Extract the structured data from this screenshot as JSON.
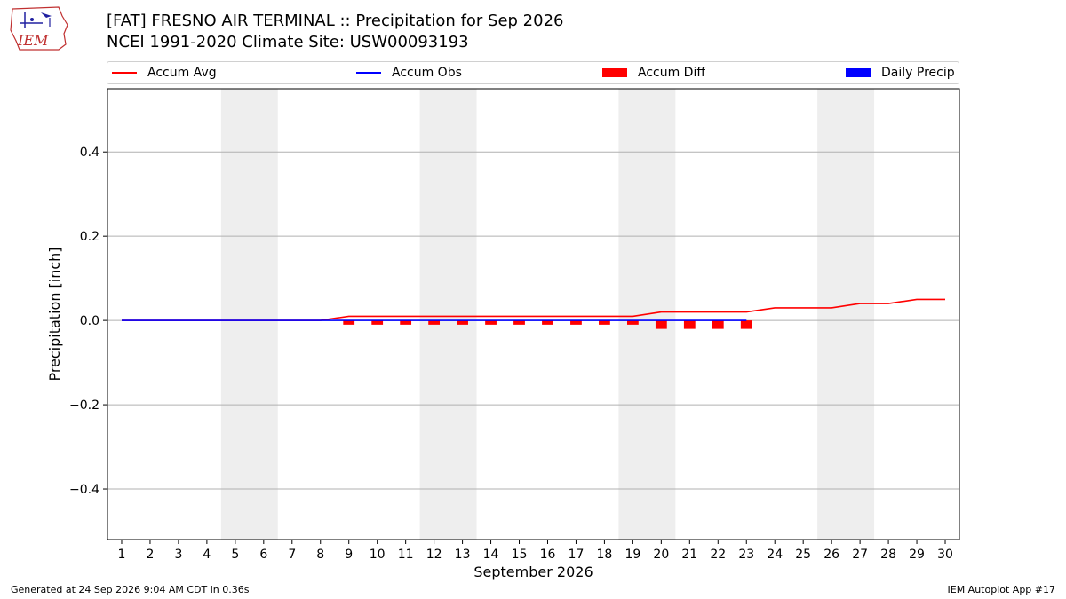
{
  "logo": {
    "text": "IEM"
  },
  "title": {
    "line1": "[FAT] FRESNO AIR TERMINAL :: Precipitation for Sep 2026",
    "line2": "NCEI 1991-2020 Climate Site: USW00093193"
  },
  "legend": {
    "accum_avg": "Accum Avg",
    "accum_obs": "Accum Obs",
    "accum_diff": "Accum Diff",
    "daily_precip": "Daily Precip"
  },
  "colors": {
    "accum_avg": "#ff0000",
    "accum_obs": "#0000ff",
    "accum_diff": "#ff0000",
    "daily_precip": "#0000ff",
    "weekend_shade": "#eeeeee",
    "grid": "#b0b0b0"
  },
  "chart_data": {
    "type": "line",
    "xlabel": "September 2026",
    "ylabel": "Precipitation [inch]",
    "xlim": [
      0.5,
      30.5
    ],
    "ylim": [
      -0.52,
      0.55
    ],
    "grid": true,
    "legend_position": "top",
    "x": [
      1,
      2,
      3,
      4,
      5,
      6,
      7,
      8,
      9,
      10,
      11,
      12,
      13,
      14,
      15,
      16,
      17,
      18,
      19,
      20,
      21,
      22,
      23,
      24,
      25,
      26,
      27,
      28,
      29,
      30
    ],
    "x_tick_labels": [
      "1",
      "2",
      "3",
      "4",
      "5",
      "6",
      "7",
      "8",
      "9",
      "10",
      "11",
      "12",
      "13",
      "14",
      "15",
      "16",
      "17",
      "18",
      "19",
      "20",
      "21",
      "22",
      "23",
      "24",
      "25",
      "26",
      "27",
      "28",
      "29",
      "30"
    ],
    "y_ticks": [
      -0.4,
      -0.2,
      0.0,
      0.2,
      0.4
    ],
    "y_tick_labels": [
      "−0.4",
      "−0.2",
      "0.0",
      "0.2",
      "0.4"
    ],
    "weekend_shading": [
      [
        5,
        6
      ],
      [
        12,
        13
      ],
      [
        19,
        20
      ],
      [
        26,
        27
      ]
    ],
    "series": [
      {
        "name": "Accum Avg",
        "kind": "line",
        "x": [
          1,
          2,
          3,
          4,
          5,
          6,
          7,
          8,
          9,
          10,
          11,
          12,
          13,
          14,
          15,
          16,
          17,
          18,
          19,
          20,
          21,
          22,
          23,
          24,
          25,
          26,
          27,
          28,
          29,
          30
        ],
        "values": [
          0,
          0,
          0,
          0,
          0,
          0,
          0,
          0,
          0.01,
          0.01,
          0.01,
          0.01,
          0.01,
          0.01,
          0.01,
          0.01,
          0.01,
          0.01,
          0.01,
          0.02,
          0.02,
          0.02,
          0.02,
          0.03,
          0.03,
          0.03,
          0.04,
          0.04,
          0.05,
          0.05
        ]
      },
      {
        "name": "Accum Obs",
        "kind": "line",
        "x": [
          1,
          2,
          3,
          4,
          5,
          6,
          7,
          8,
          9,
          10,
          11,
          12,
          13,
          14,
          15,
          16,
          17,
          18,
          19,
          20,
          21,
          22,
          23
        ],
        "values": [
          0,
          0,
          0,
          0,
          0,
          0,
          0,
          0,
          0,
          0,
          0,
          0,
          0,
          0,
          0,
          0,
          0,
          0,
          0,
          0,
          0,
          0,
          0
        ]
      },
      {
        "name": "Accum Diff",
        "kind": "bar",
        "x": [
          9,
          10,
          11,
          12,
          13,
          14,
          15,
          16,
          17,
          18,
          19,
          20,
          21,
          22,
          23
        ],
        "values": [
          -0.01,
          -0.01,
          -0.01,
          -0.01,
          -0.01,
          -0.01,
          -0.01,
          -0.01,
          -0.01,
          -0.01,
          -0.01,
          -0.02,
          -0.02,
          -0.02,
          -0.02
        ]
      },
      {
        "name": "Daily Precip",
        "kind": "bar",
        "x": [],
        "values": []
      }
    ]
  },
  "footer": {
    "generated": "Generated at 24 Sep 2026 9:04 AM CDT in 0.36s",
    "app": "IEM Autoplot App #17"
  }
}
